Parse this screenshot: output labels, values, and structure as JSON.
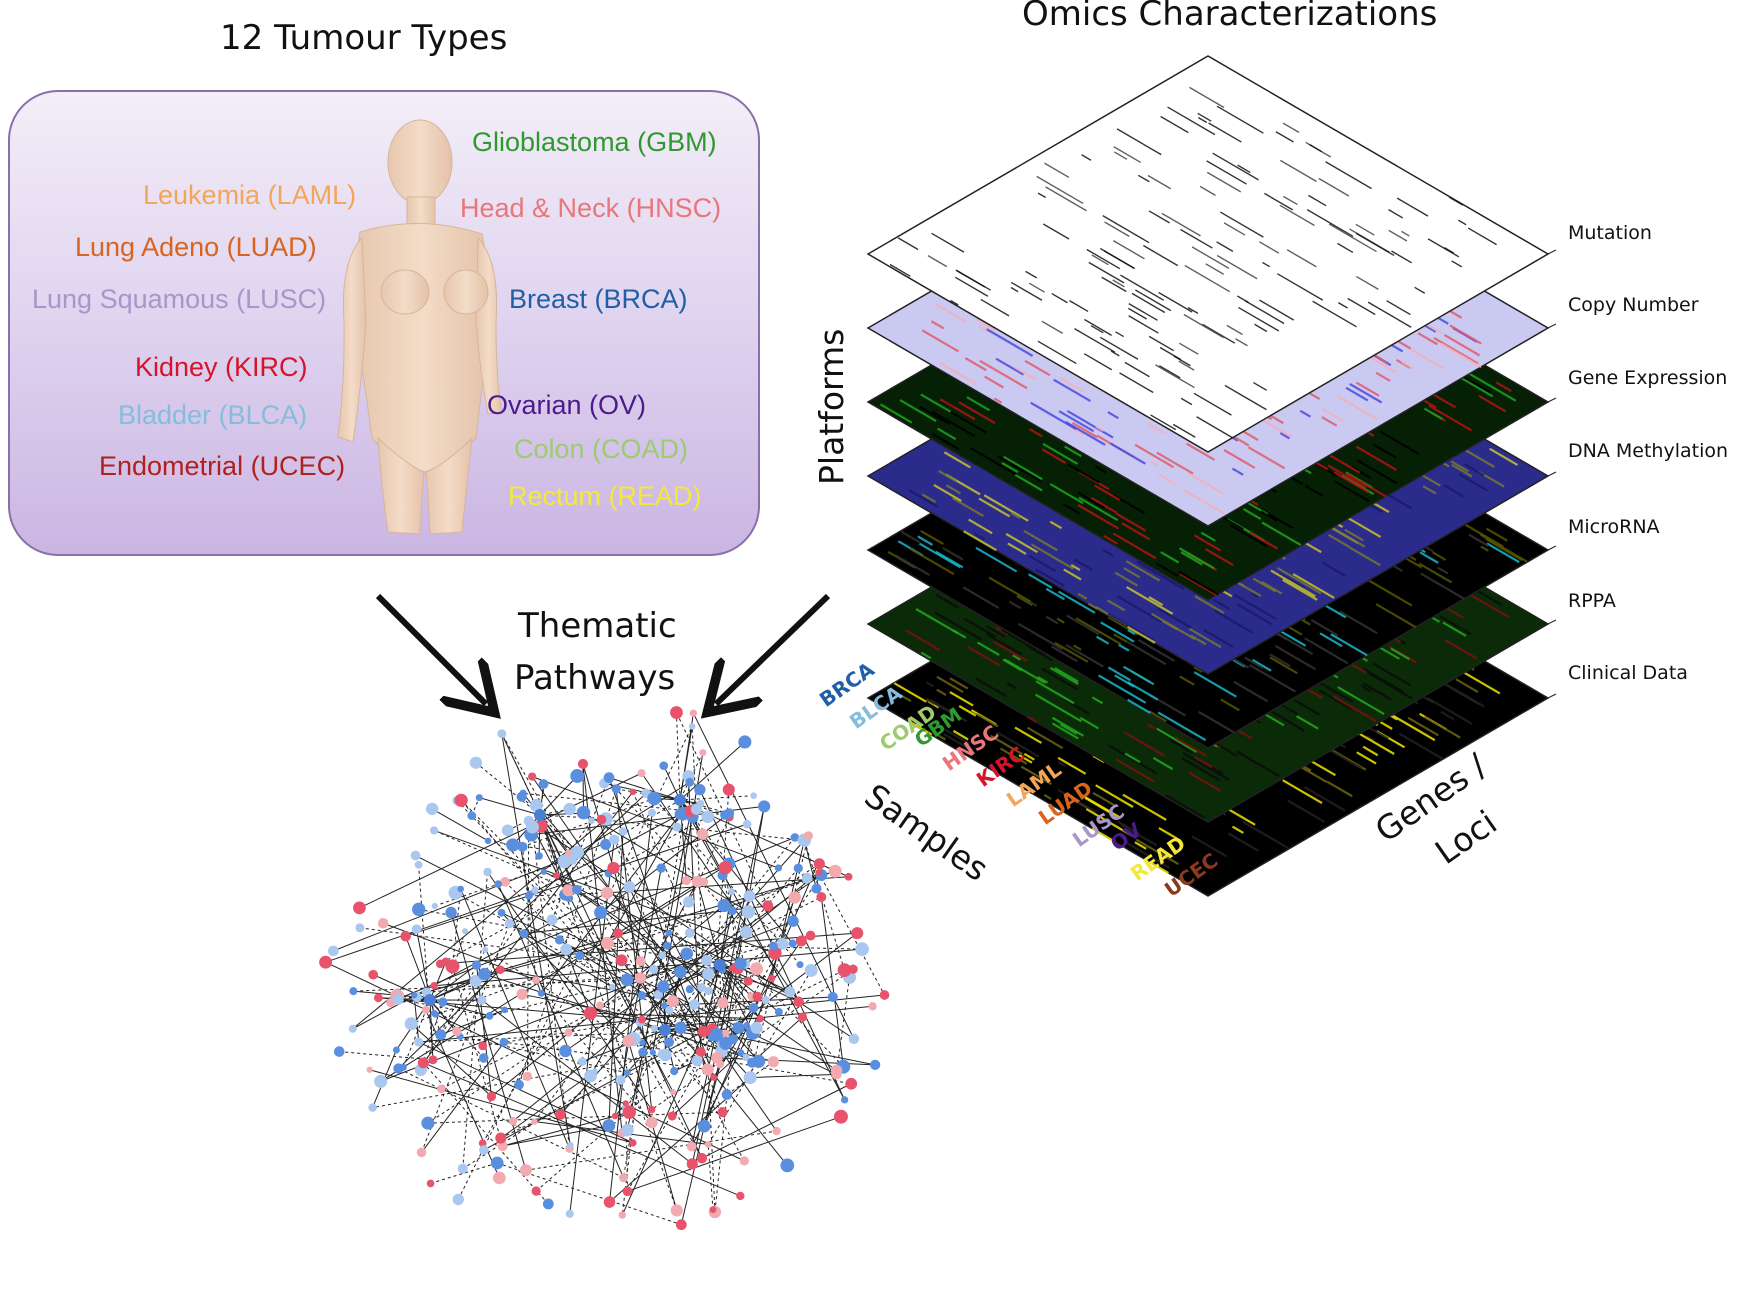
{
  "left_title": "12 Tumour Types",
  "right_title": "Omics Characterizations",
  "center_title_line1": "Thematic",
  "center_title_line2": "Pathways",
  "tumour_types": [
    {
      "label": "Glioblastoma (GBM)",
      "color": "#2e9a2e"
    },
    {
      "label": "Leukemia (LAML)",
      "color": "#f2a65a"
    },
    {
      "label": "Head & Neck (HNSC)",
      "color": "#e8767a"
    },
    {
      "label": "Lung Adeno (LUAD)",
      "color": "#d9641e"
    },
    {
      "label": "Lung Squamous (LUSC)",
      "color": "#a896c8"
    },
    {
      "label": "Breast (BRCA)",
      "color": "#1f5fa8"
    },
    {
      "label": "Kidney (KIRC)",
      "color": "#d4142a"
    },
    {
      "label": "Bladder (BLCA)",
      "color": "#86bcdc"
    },
    {
      "label": "Ovarian (OV)",
      "color": "#4b1a8c"
    },
    {
      "label": "Colon (COAD)",
      "color": "#9ecb6e"
    },
    {
      "label": "Endometrial (UCEC)",
      "color": "#b0201e"
    },
    {
      "label": "Rectum (READ)",
      "color": "#f4e83a"
    }
  ],
  "platforms_label": "Platforms",
  "platforms": [
    "Mutation",
    "Copy Number",
    "Gene Expression",
    "DNA Methylation",
    "MicroRNA",
    "RPPA",
    "Clinical Data"
  ],
  "samples_label": "Samples",
  "genes_label_line1": "Genes /",
  "genes_label_line2": "Loci",
  "sample_codes": [
    {
      "label": "BRCA",
      "color": "#1f5fa8"
    },
    {
      "label": "BLCA",
      "color": "#86bcdc"
    },
    {
      "label": "COAD",
      "color": "#9ecb6e"
    },
    {
      "label": "GBM",
      "color": "#2e9a2e"
    },
    {
      "label": "HNSC",
      "color": "#e8767a"
    },
    {
      "label": "KIRC",
      "color": "#d4142a"
    },
    {
      "label": "LAML",
      "color": "#f2a65a"
    },
    {
      "label": "LUAD",
      "color": "#d9641e"
    },
    {
      "label": "LUSC",
      "color": "#a896c8"
    },
    {
      "label": "OV",
      "color": "#4b1a8c"
    },
    {
      "label": "READ",
      "color": "#f4e83a"
    },
    {
      "label": "UCEC",
      "color": "#8a3a1e"
    }
  ]
}
